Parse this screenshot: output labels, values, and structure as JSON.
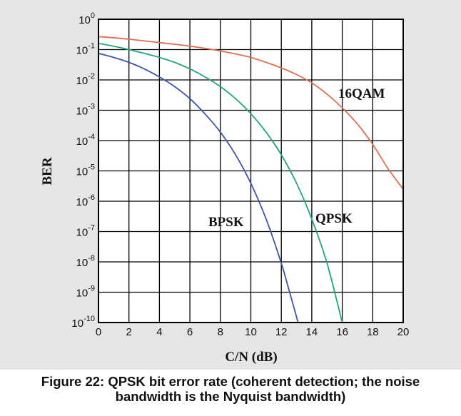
{
  "chart_data": {
    "type": "line",
    "xlabel": "C/N (dB)",
    "ylabel": "BER",
    "xlim": [
      0,
      20
    ],
    "ylim": [
      1e-10,
      1
    ],
    "yscale": "log",
    "grid": true,
    "x_ticks": [
      "0",
      "2",
      "4",
      "6",
      "8",
      "10",
      "12",
      "14",
      "16",
      "18",
      "20"
    ],
    "y_ticks": [
      {
        "base": "10",
        "exp": "0",
        "value": 1
      },
      {
        "base": "10",
        "exp": "-1",
        "value": 0.1
      },
      {
        "base": "10",
        "exp": "-2",
        "value": 0.01
      },
      {
        "base": "10",
        "exp": "-3",
        "value": 0.001
      },
      {
        "base": "10",
        "exp": "-4",
        "value": 0.0001
      },
      {
        "base": "10",
        "exp": "-5",
        "value": 1e-05
      },
      {
        "base": "10",
        "exp": "-6",
        "value": 1e-06
      },
      {
        "base": "10",
        "exp": "-7",
        "value": 1e-07
      },
      {
        "base": "10",
        "exp": "-8",
        "value": 1e-08
      },
      {
        "base": "10",
        "exp": "-9",
        "value": 1e-09
      },
      {
        "base": "10",
        "exp": "-10",
        "value": 1e-10
      }
    ],
    "series": [
      {
        "name": "BPSK",
        "color": "#3a55b0",
        "x": [
          0,
          1,
          2,
          3,
          4,
          5,
          6,
          7,
          8,
          9,
          10,
          11,
          12,
          12.5,
          13.1
        ],
        "y": [
          0.075,
          0.055,
          0.038,
          0.023,
          0.0125,
          0.006,
          0.0024,
          0.00075,
          0.00019,
          3.4e-05,
          3.9e-06,
          2.6e-07,
          9e-09,
          1.2e-09,
          1e-10
        ]
      },
      {
        "name": "QPSK",
        "color": "#1fa77a",
        "x": [
          0,
          1,
          2,
          3,
          4,
          5,
          6,
          7,
          8,
          9,
          10,
          11,
          12,
          13,
          14,
          15,
          16
        ],
        "y": [
          0.16,
          0.13,
          0.1,
          0.075,
          0.055,
          0.038,
          0.023,
          0.0125,
          0.006,
          0.0024,
          0.00077,
          0.00019,
          3.4e-05,
          3.9e-06,
          2.6e-07,
          9e-09,
          1e-10
        ]
      },
      {
        "name": "16QAM",
        "color": "#e0704d",
        "x": [
          0,
          2,
          4,
          6,
          8,
          10,
          12,
          13,
          14,
          15,
          16,
          17,
          18,
          19,
          20
        ],
        "y": [
          0.27,
          0.22,
          0.17,
          0.13,
          0.09,
          0.055,
          0.025,
          0.015,
          0.008,
          0.0034,
          0.0012,
          0.00035,
          7.5e-05,
          1.2e-05,
          2.5e-06
        ]
      }
    ]
  },
  "caption": {
    "line1": "Figure 22: QPSK bit error rate (coherent detection; the noise",
    "line2": "bandwidth is the Nyquist bandwidth)"
  }
}
